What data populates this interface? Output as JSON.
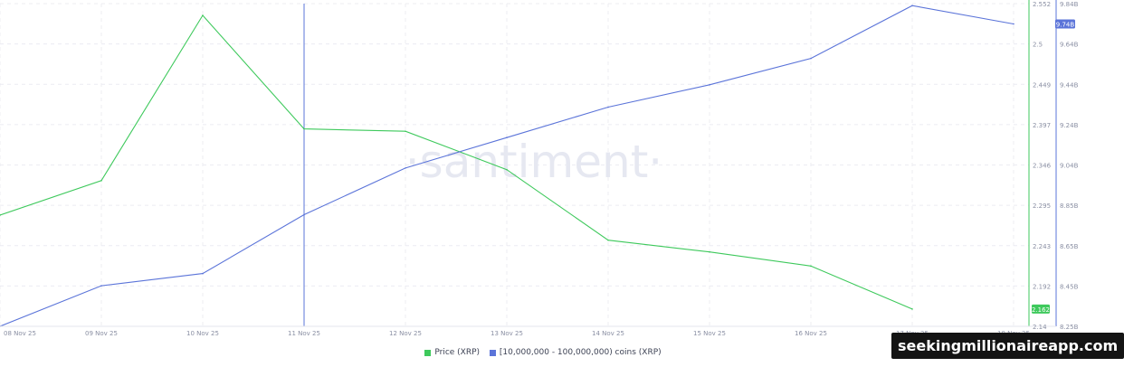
{
  "chart_data": {
    "type": "line",
    "watermark": "santiment",
    "x": [
      "08 Nov 25",
      "09 Nov 25",
      "10 Nov 25",
      "11 Nov 25",
      "12 Nov 25",
      "13 Nov 25",
      "14 Nov 25",
      "15 Nov 25",
      "16 Nov 25",
      "17 Nov 25",
      "18 Nov 25"
    ],
    "series": [
      {
        "name": "Price (XRP)",
        "color": "#3ec95c",
        "axis": "left",
        "values": [
          2.282,
          2.326,
          2.537,
          2.392,
          2.389,
          2.34,
          2.25,
          2.235,
          2.217,
          2.162,
          null
        ]
      },
      {
        "name": "[10,000,000 - 100,000,000) coins (XRP)",
        "color": "#5b74d9",
        "axis": "right",
        "values": [
          8.25,
          8.45,
          8.51,
          8.8,
          9.03,
          9.18,
          9.33,
          9.44,
          9.57,
          9.83,
          9.74
        ]
      }
    ],
    "left_axis": {
      "ticks": [
        "2.14",
        "2.192",
        "2.243",
        "2.295",
        "2.346",
        "2.397",
        "2.449",
        "2.5",
        "2.552"
      ],
      "range": [
        2.14,
        2.552
      ]
    },
    "right_axis": {
      "ticks": [
        "8.25B",
        "8.45B",
        "8.65B",
        "8.85B",
        "9.04B",
        "9.24B",
        "9.44B",
        "9.64B",
        "9.84B"
      ],
      "range": [
        8.25,
        9.84
      ]
    },
    "last_value_labels": {
      "price": "2.162",
      "holders": "9.74B"
    },
    "highlight_x": "11 Nov 25",
    "grid": true,
    "legend_position": "bottom-center"
  },
  "watermark_badge": {
    "text": "seekingmillionaireapp.com"
  }
}
